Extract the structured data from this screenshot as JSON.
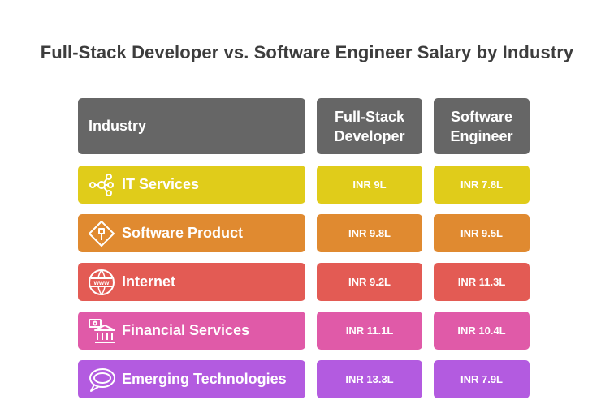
{
  "chart_data": {
    "type": "table",
    "title": "Full-Stack Developer vs. Software Engineer Salary by Industry",
    "columns": [
      "Industry",
      "Full-Stack Developer",
      "Software Engineer"
    ],
    "rows": [
      {
        "industry": "IT Services",
        "icon": "network-icon",
        "color": "#e0cc1a",
        "fullstack": "INR 9L",
        "software": "INR 7.8L"
      },
      {
        "industry": "Software Product",
        "icon": "product-diamond-icon",
        "color": "#e08a30",
        "fullstack": "INR 9.8L",
        "software": "INR 9.5L"
      },
      {
        "industry": "Internet",
        "icon": "www-globe-icon",
        "color": "#e35b54",
        "fullstack": "INR 9.2L",
        "software": "INR 11.3L"
      },
      {
        "industry": "Financial Services",
        "icon": "bank-icon",
        "color": "#e05aa8",
        "fullstack": "INR 11.1L",
        "software": "INR 10.4L"
      },
      {
        "industry": "Emerging Technologies",
        "icon": "chat-bubble-icon",
        "color": "#b35be0",
        "fullstack": "INR 13.3L",
        "software": "INR 7.9L"
      }
    ]
  },
  "colors": {
    "header": "#666666",
    "title": "#3d3d3d"
  }
}
